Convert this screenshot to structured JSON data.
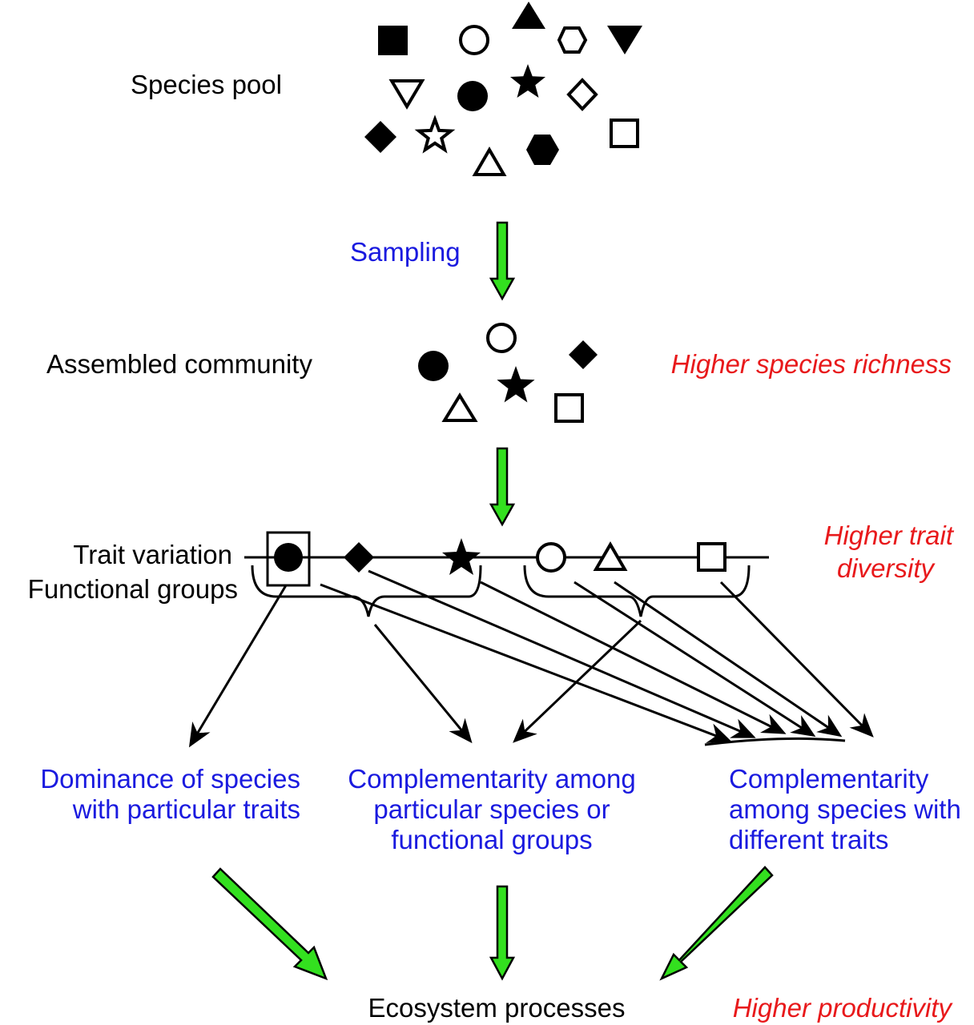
{
  "labels": {
    "species_pool": "Species pool",
    "sampling": "Sampling",
    "assembled_community": "Assembled community",
    "higher_species_richness": "Higher species richness",
    "trait_variation": "Trait variation",
    "functional_groups": "Functional groups",
    "higher_trait": "Higher trait",
    "diversity": "diversity",
    "dominance_line1": "Dominance of species",
    "dominance_line2": "with particular traits",
    "comp_groups_line1": "Complementarity among",
    "comp_groups_line2": "particular species or",
    "comp_groups_line3": "functional groups",
    "comp_traits_line1": "Complementarity",
    "comp_traits_line2": "among species with",
    "comp_traits_line3": "different traits",
    "ecosystem_processes": "Ecosystem processes",
    "higher_productivity": "Higher productivity"
  },
  "colors": {
    "text_black": "#000000",
    "text_blue": "#1a1adf",
    "text_red": "#e8191b",
    "arrow_green": "#33e01f"
  },
  "symbols": {
    "species_pool": [
      "filled-square",
      "hollow-circle",
      "filled-triangle-up",
      "hollow-hexagon",
      "filled-triangle-down",
      "hollow-triangle-down",
      "filled-circle",
      "filled-star",
      "hollow-diamond",
      "filled-diamond",
      "hollow-star",
      "hollow-triangle-up",
      "filled-hexagon",
      "hollow-square"
    ],
    "assembled_community": [
      "hollow-circle",
      "filled-diamond",
      "filled-circle",
      "filled-star",
      "hollow-triangle-up",
      "hollow-square"
    ],
    "trait_axis": [
      "filled-circle",
      "filled-diamond",
      "filled-star",
      "hollow-circle",
      "hollow-triangle-up",
      "hollow-square"
    ]
  }
}
